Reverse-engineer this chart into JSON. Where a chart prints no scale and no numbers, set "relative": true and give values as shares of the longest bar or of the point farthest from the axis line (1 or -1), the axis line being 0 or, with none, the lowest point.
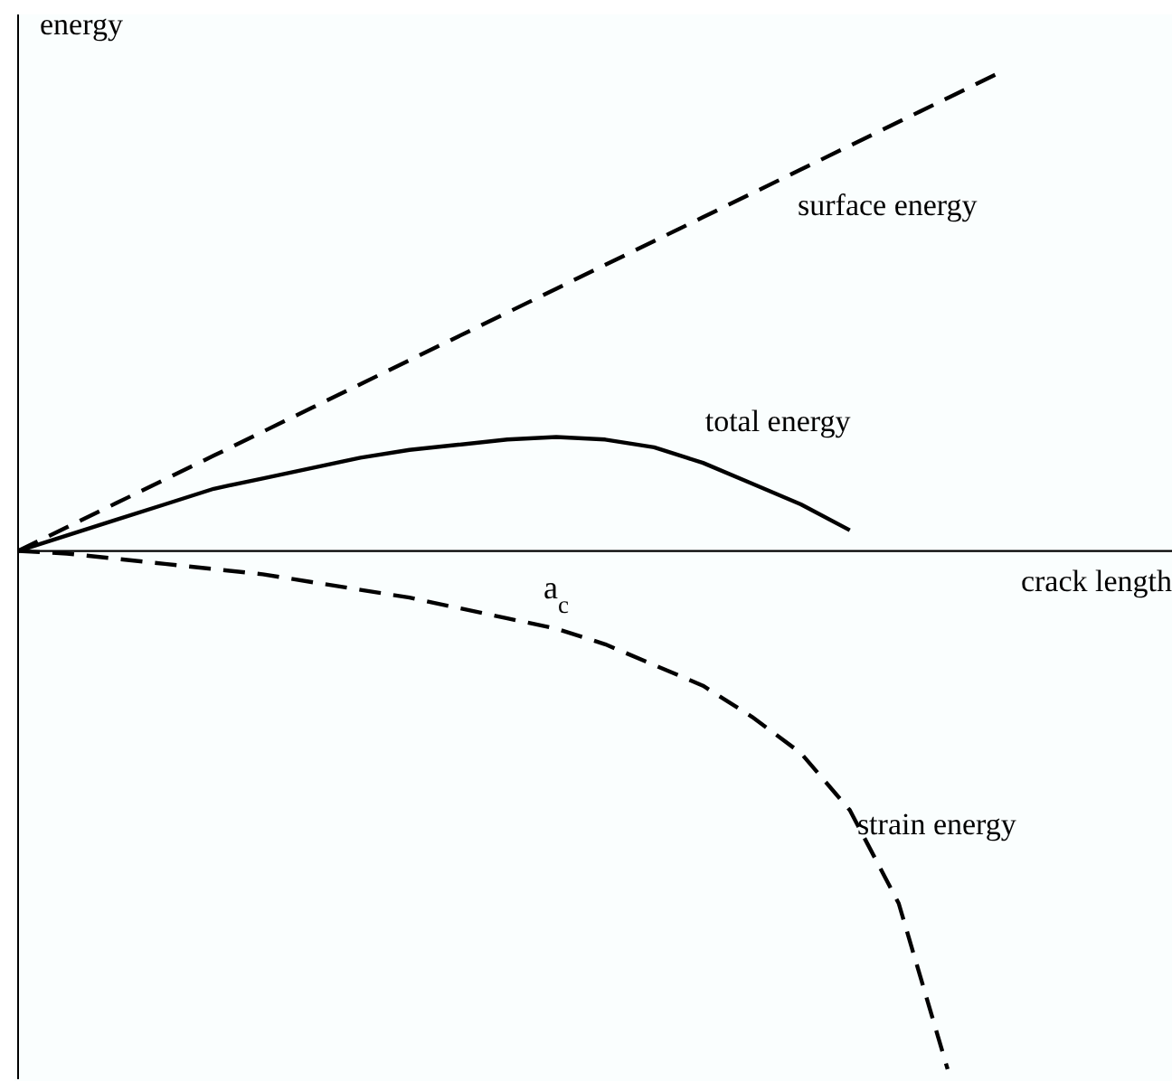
{
  "chart_data": {
    "type": "line",
    "relative": true,
    "ylabel": "energy",
    "xlabel": "crack length",
    "annotations": [
      "a$_{c}$"
    ],
    "categories": [
      null,
      null,
      null,
      null,
      null,
      null,
      null,
      null,
      null,
      null,
      null,
      null,
      null,
      null,
      null,
      null,
      null,
      null,
      null,
      null,
      null
    ],
    "series": [
      {
        "name": "surface energy",
        "color": "#000000",
        "line_style": "dashed",
        "values": [
          0,
          0.046,
          0.092,
          0.138,
          0.184,
          0.23,
          0.276,
          0.322,
          0.368,
          0.414,
          0.46,
          0.506,
          0.552,
          0.598,
          0.644,
          0.69,
          0.736,
          0.782,
          0.828,
          0.874,
          0.92
        ]
      },
      {
        "name": "total energy",
        "color": "#000000",
        "line_style": "solid",
        "values": [
          0,
          0.03,
          0.06,
          0.09,
          0.12,
          0.14,
          0.16,
          0.18,
          0.195,
          0.205,
          0.215,
          0.22,
          0.215,
          0.2,
          0.17,
          0.13,
          0.09,
          0.04,
          null,
          null,
          null
        ]
      },
      {
        "name": "strain energy",
        "color": "#000000",
        "line_style": "dashed",
        "values": [
          0,
          -0.005,
          -0.015,
          -0.025,
          -0.035,
          -0.045,
          -0.06,
          -0.075,
          -0.09,
          -0.11,
          -0.13,
          -0.15,
          -0.18,
          -0.22,
          -0.26,
          -0.32,
          -0.39,
          -0.5,
          -0.68,
          -1,
          null
        ]
      }
    ],
    "marker": "none",
    "legend": false,
    "grid": false
  }
}
